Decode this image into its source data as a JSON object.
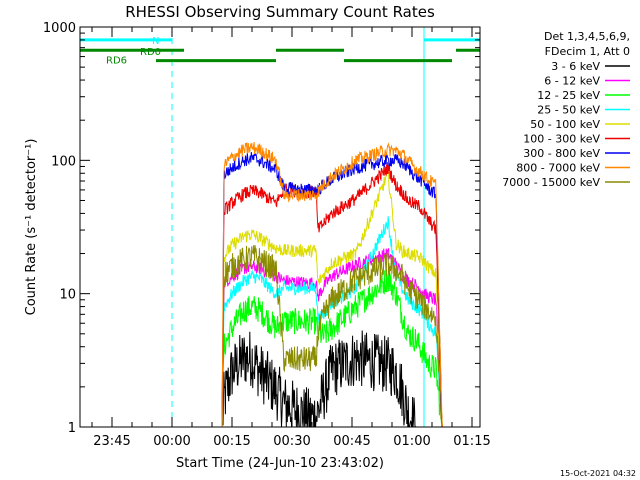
{
  "chart_data": {
    "type": "line",
    "title": "RHESSI Observing Summary Count Rates",
    "xlabel": "Start Time (24-Jun-10 23:43:02)",
    "ylabel": "Count Rate (s⁻¹ detector⁻¹)",
    "yscale": "log",
    "ylim": [
      1,
      1000
    ],
    "xlim_minutes_after_2340": [
      -3,
      97
    ],
    "x_ticks": [
      {
        "label": "23:45",
        "minute": 5
      },
      {
        "label": "00:00",
        "minute": 20
      },
      {
        "label": "00:15",
        "minute": 35
      },
      {
        "label": "00:30",
        "minute": 50
      },
      {
        "label": "00:45",
        "minute": 65
      },
      {
        "label": "01:00",
        "minute": 80
      },
      {
        "label": "01:15",
        "minute": 95
      }
    ],
    "y_ticks": [
      {
        "label": "1",
        "value": 1
      },
      {
        "label": "10",
        "value": 10
      },
      {
        "label": "100",
        "value": 100
      },
      {
        "label": "1000",
        "value": 1000
      }
    ],
    "legend": {
      "placement": "right",
      "header": [
        "Det 1,3,4,5,6,9,",
        "FDecim 1, Att 0"
      ]
    },
    "series": [
      {
        "name": "3 - 6 keV",
        "color": "#000000",
        "x": [
          32.5,
          33,
          35,
          38,
          40,
          42,
          46,
          48,
          54,
          56,
          56.5,
          58,
          60,
          66,
          74,
          76,
          77.5,
          79,
          81,
          82,
          83,
          84,
          86,
          87.5,
          88
        ],
        "y": [
          1.0,
          1.6,
          2.6,
          3.3,
          3.3,
          2.6,
          1.9,
          1.5,
          1.2,
          1.2,
          1.3,
          1.8,
          2.7,
          3.3,
          2.9,
          2.6,
          1.9,
          1.3,
          1.0,
          1.0,
          1.0,
          1.0,
          1.0,
          1.0,
          1.0
        ]
      },
      {
        "name": "6 - 12 keV",
        "color": "#ff00ff",
        "x": [
          32.5,
          33,
          35,
          38,
          40,
          42,
          46,
          48,
          54,
          56,
          56.5,
          58,
          60,
          66,
          74,
          76,
          77.5,
          79,
          81,
          82,
          83,
          84,
          86,
          87.5,
          88
        ],
        "y": [
          1.0,
          12.0,
          13.5,
          15.5,
          16.0,
          15.5,
          13.5,
          12.5,
          12.0,
          12.0,
          9.5,
          11.5,
          13.5,
          16.5,
          20.0,
          16.5,
          14.0,
          12.5,
          11.5,
          11.0,
          10.0,
          9.5,
          9.0,
          1.0,
          1.0
        ]
      },
      {
        "name": "12 - 25 keV",
        "color": "#00ff00",
        "x": [
          32.5,
          33,
          35,
          38,
          40,
          42,
          46,
          48,
          54,
          56,
          56.5,
          58,
          60,
          66,
          74,
          76,
          77.5,
          79,
          81,
          82,
          83,
          84,
          86,
          87.5,
          88
        ],
        "y": [
          1.0,
          4.0,
          5.5,
          7.5,
          8.0,
          7.5,
          5.5,
          6.2,
          6.2,
          6.2,
          5.0,
          4.8,
          5.5,
          8.0,
          13.0,
          10.0,
          7.0,
          5.0,
          4.5,
          4.0,
          3.5,
          3.0,
          2.7,
          1.0,
          1.0
        ]
      },
      {
        "name": "25 - 50 keV",
        "color": "#00ffff",
        "x": [
          32.5,
          33,
          35,
          38,
          40,
          42,
          46,
          48,
          54,
          56,
          56.5,
          58,
          60,
          66,
          74,
          76,
          77.5,
          79,
          81,
          82,
          83,
          84,
          86,
          87.5,
          88
        ],
        "y": [
          1.0,
          8.0,
          10.0,
          12.5,
          13.5,
          13.0,
          10.0,
          11.0,
          11.0,
          11.0,
          6.5,
          7.0,
          8.5,
          11.0,
          35.0,
          14.0,
          11.0,
          9.0,
          8.0,
          7.5,
          7.0,
          6.0,
          5.0,
          1.0,
          1.0
        ]
      },
      {
        "name": "50 - 100 keV",
        "color": "#dddd00",
        "x": [
          32.5,
          33,
          35,
          38,
          40,
          42,
          46,
          48,
          54,
          56,
          56.5,
          58,
          60,
          66,
          74,
          76,
          77.5,
          79,
          81,
          82,
          83,
          84,
          86,
          87.5,
          88
        ],
        "y": [
          1.0,
          19.0,
          23.0,
          27.0,
          28.0,
          26.0,
          22.0,
          21.0,
          21.0,
          21.0,
          12.0,
          14.0,
          17.0,
          20.0,
          80.0,
          24.0,
          21.0,
          20.0,
          19.0,
          18.5,
          17.5,
          16.0,
          14.0,
          1.0,
          1.0
        ]
      },
      {
        "name": "100 - 300 keV",
        "color": "#ee0000",
        "x": [
          32.5,
          33,
          35,
          38,
          40,
          42,
          46,
          48,
          54,
          56,
          56.5,
          58,
          60,
          66,
          74,
          76,
          77.5,
          79,
          81,
          82,
          83,
          84,
          86,
          87.5,
          88
        ],
        "y": [
          1.0,
          42.0,
          48.0,
          56.0,
          59.0,
          57.0,
          48.0,
          60.0,
          58.0,
          58.0,
          30.0,
          34.0,
          40.0,
          52.0,
          88.0,
          65.0,
          58.0,
          50.0,
          46.0,
          45.0,
          40.0,
          36.0,
          30.0,
          1.0,
          1.0
        ]
      },
      {
        "name": "300 - 800 keV",
        "color": "#0000ee",
        "x": [
          32.5,
          33,
          35,
          38,
          40,
          42,
          46,
          48,
          54,
          56,
          56.5,
          58,
          60,
          66,
          74,
          76,
          77.5,
          79,
          81,
          82,
          83,
          84,
          86,
          87.5,
          88
        ],
        "y": [
          1.0,
          78.0,
          88.0,
          100.0,
          104.0,
          100.0,
          85.0,
          62.0,
          60.0,
          60.0,
          60.0,
          66.0,
          72.0,
          88.0,
          100.0,
          100.0,
          96.0,
          88.0,
          76.0,
          72.0,
          68.0,
          62.0,
          55.0,
          1.0,
          1.0
        ]
      },
      {
        "name": "800 - 7000 keV",
        "color": "#ff8800",
        "x": [
          32.5,
          33,
          35,
          38,
          40,
          42,
          46,
          48,
          54,
          56,
          56.5,
          58,
          60,
          66,
          74,
          76,
          77.5,
          79,
          81,
          82,
          83,
          84,
          86,
          87.5,
          88
        ],
        "y": [
          1.0,
          92.0,
          105.0,
          120.0,
          125.0,
          120.0,
          100.0,
          55.0,
          55.0,
          55.0,
          58.0,
          66.0,
          76.0,
          100.0,
          120.0,
          118.0,
          112.0,
          100.0,
          86.0,
          82.0,
          78.0,
          72.0,
          65.0,
          1.0,
          1.0
        ]
      },
      {
        "name": "7000 - 15000 keV",
        "color": "#8b8b00",
        "x": [
          32.5,
          33,
          35,
          38,
          40,
          42,
          46,
          48,
          54,
          56,
          56.5,
          58,
          60,
          66,
          74,
          76,
          77.5,
          79,
          81,
          82,
          83,
          84,
          86,
          87.5,
          88
        ],
        "y": [
          1.0,
          14.0,
          16.0,
          18.0,
          19.0,
          18.0,
          15.0,
          3.2,
          3.2,
          3.2,
          5.0,
          7.0,
          9.0,
          13.0,
          16.5,
          15.0,
          13.5,
          11.0,
          9.5,
          9.0,
          8.0,
          7.5,
          6.5,
          1.0,
          1.0
        ]
      }
    ],
    "annotations": {
      "status_bars": [
        {
          "label": "N",
          "color": "#00ffff",
          "segments": [
            [
              -3,
              20
            ],
            [
              83,
              97
            ]
          ],
          "value": 800
        },
        {
          "label": "RD0",
          "color": "#008800",
          "segments": [
            [
              -3,
              23
            ],
            [
              46,
              63
            ],
            [
              91,
              97
            ]
          ],
          "value": 670
        },
        {
          "label": "RD6",
          "color": "#008800",
          "segments": [
            [
              16,
              46
            ],
            [
              63,
              90
            ]
          ],
          "value": 560
        }
      ],
      "vertical_lines": [
        {
          "minute": -3,
          "color": "#00ffff",
          "style": "solid"
        },
        {
          "minute": 20,
          "color": "#00ffff",
          "style": "dashed"
        },
        {
          "minute": 83,
          "color": "#00ffff",
          "style": "solid"
        },
        {
          "minute": 97,
          "color": "#00ffff",
          "style": "dashed"
        }
      ]
    }
  },
  "footer": {
    "timestamp": "15-Oct-2021 04:32"
  }
}
